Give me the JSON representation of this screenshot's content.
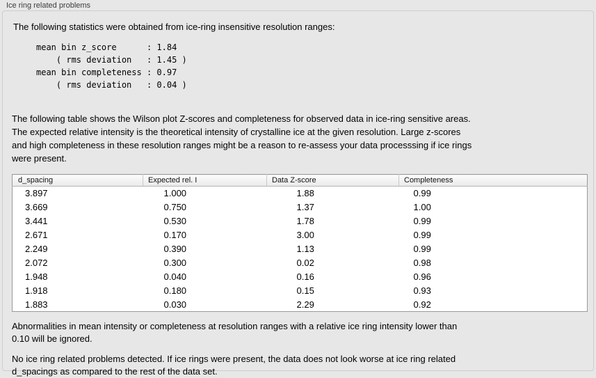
{
  "panel": {
    "title": "Ice ring related problems",
    "intro": "The following statistics were obtained from ice-ring insensitive resolution ranges:",
    "stats_block": "mean bin z_score      : 1.84\n    ( rms deviation   : 1.45 )\nmean bin completeness : 0.97\n    ( rms deviation   : 0.04 )",
    "table_description": "The following table shows the Wilson plot Z-scores and completeness for observed data in ice-ring sensitive areas.\nThe expected relative intensity is the theoretical intensity of crystalline ice at the given resolution. Large z-scores\nand high completeness in these resolution ranges might be a reason to re-assess your data processsing if ice rings\nwere present.",
    "ignore_note": "Abnormalities in mean intensity or completeness at resolution ranges with a relative ice ring intensity lower than\n0.10 will be ignored.",
    "conclusion": "No ice ring related problems detected. If ice rings were present, the data does not look worse at ice ring related\nd_spacings as compared to the rest of the data set."
  },
  "table": {
    "headers": [
      "d_spacing",
      "Expected rel. I",
      "Data Z-score",
      "Completeness"
    ],
    "rows": [
      [
        "3.897",
        "1.000",
        "1.88",
        "0.99"
      ],
      [
        "3.669",
        "0.750",
        "1.37",
        "1.00"
      ],
      [
        "3.441",
        "0.530",
        "1.78",
        "0.99"
      ],
      [
        "2.671",
        "0.170",
        "3.00",
        "0.99"
      ],
      [
        "2.249",
        "0.390",
        "1.13",
        "0.99"
      ],
      [
        "2.072",
        "0.300",
        "0.02",
        "0.98"
      ],
      [
        "1.948",
        "0.040",
        "0.16",
        "0.96"
      ],
      [
        "1.918",
        "0.180",
        "0.15",
        "0.93"
      ],
      [
        "1.883",
        "0.030",
        "2.29",
        "0.92"
      ]
    ]
  },
  "colors": {
    "background": "#e7e7e7",
    "table_background": "#ffffff",
    "table_border": "#999999",
    "header_background": "#e9e9e9",
    "text": "#000000"
  }
}
